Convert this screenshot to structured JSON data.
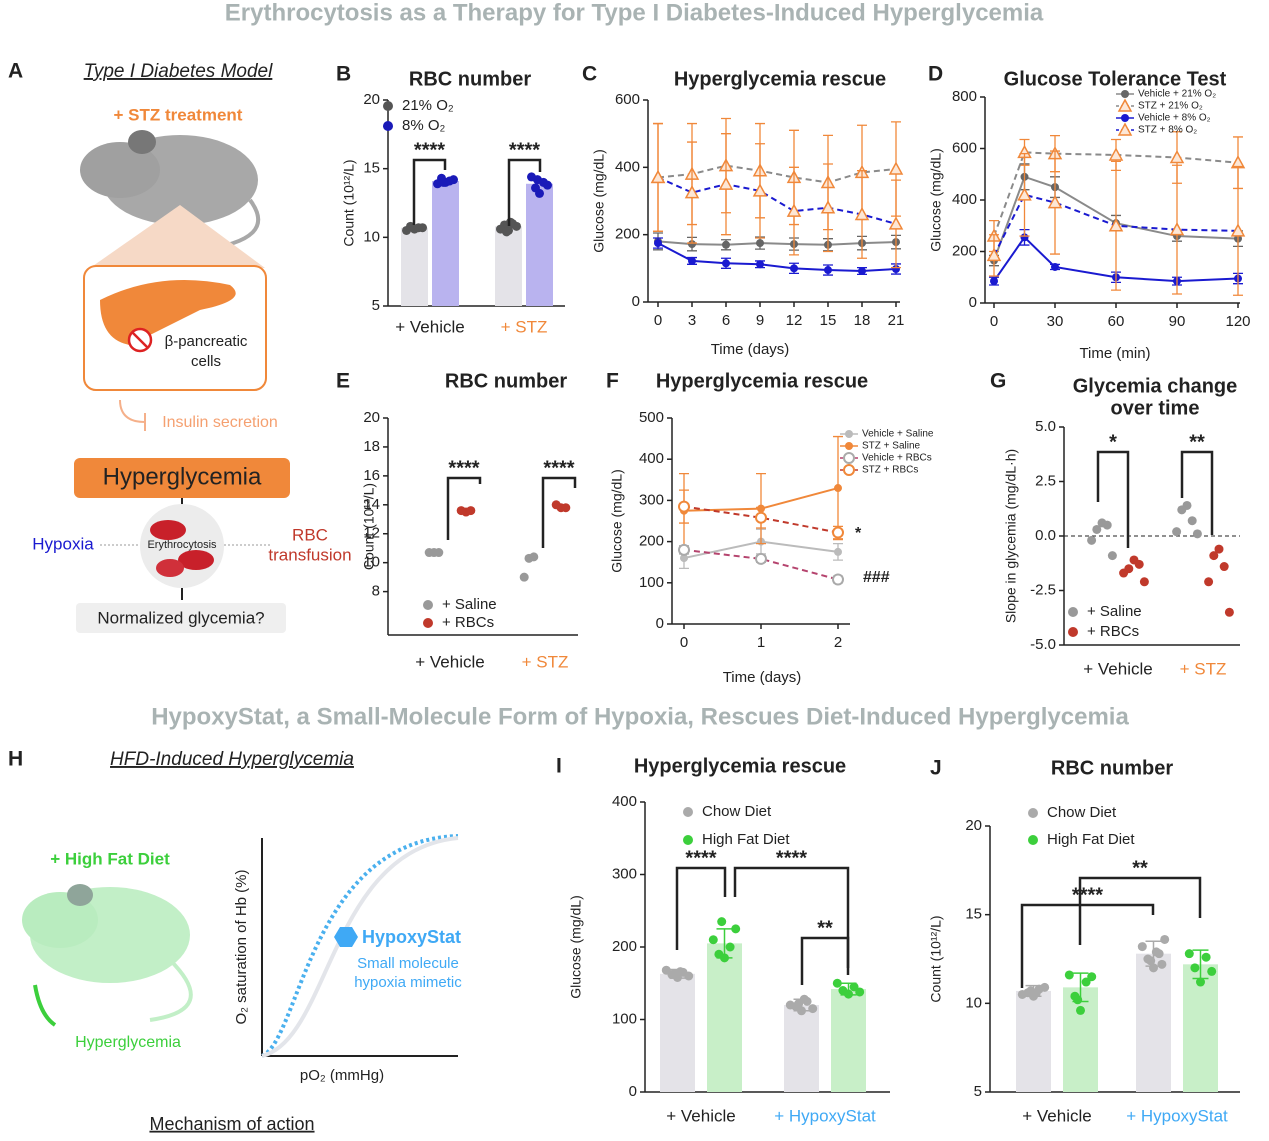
{
  "title": "Erythrocytosis as a Therapy for Type I Diabetes-Induced Hyperglycemia",
  "subtitle": "HypoxyStat, a Small-Molecule Form of Hypoxia, Rescues Diet-Induced Hyperglycemia",
  "diagram_a": {
    "panel": "A",
    "title": "Type I Diabetes Model",
    "treatment": "+ STZ treatment",
    "cells_1": "β-pancreatic",
    "cells_2": "cells",
    "insulin": "Insulin secretion",
    "hyperglycemia": "Hyperglycemia",
    "hypoxia": "Hypoxia",
    "erythrocytosis": "Erythrocytosis",
    "transfusion_1": "RBC",
    "transfusion_2": "transfusion",
    "outcome": "Normalized glycemia?"
  },
  "diagram_h": {
    "panel": "H",
    "title": "HFD-Induced Hyperglycemia",
    "diet": "+ High Fat Diet",
    "hyperglycemia": "Hyperglycemia",
    "y_label": "O₂ saturation of Hb (%)",
    "x_label": "pO₂ (mmHg)",
    "drug": "HypoxyStat",
    "drug_desc_1": "Small molecule",
    "drug_desc_2": "hypoxia mimetic",
    "caption": "Mechanism of action"
  },
  "chart_data": [
    {
      "type": "bar",
      "panel": "B",
      "title": "RBC number",
      "y_label": "Count (10¹²/L)",
      "categories": [
        "+ Vehicle",
        "+ STZ"
      ],
      "category_colors": [
        "#222222",
        "#f0883a"
      ],
      "ylim": [
        5,
        20
      ],
      "yticks": [
        5,
        10,
        15,
        20
      ],
      "series": [
        {
          "name": "21% O₂",
          "color": "#555555",
          "bar_color": "#e4e3e8",
          "values": [
            10.7,
            10.8
          ],
          "points": [
            [
              10.6,
              10.8,
              10.7,
              10.5,
              10.7
            ],
            [
              10.5,
              10.9,
              11.0,
              10.6,
              10.8,
              10.4,
              11.1
            ]
          ]
        },
        {
          "name": "8% O₂",
          "color": "#1a1ab8",
          "bar_color": "#b9b3ef",
          "values": [
            14.1,
            13.9
          ],
          "points": [
            [
              14.0,
              14.3,
              14.1,
              13.9,
              14.2,
              14.0
            ],
            [
              13.2,
              13.6,
              14.0,
              14.4,
              13.8,
              14.2
            ]
          ]
        }
      ],
      "annotations": [
        "****",
        "****"
      ]
    },
    {
      "type": "line",
      "panel": "C",
      "title": "Hyperglycemia rescue",
      "x_label": "Time (days)",
      "y_label": "Glucose (mg/dL)",
      "x": [
        0,
        3,
        6,
        9,
        12,
        15,
        18,
        21
      ],
      "xlim": [
        0,
        21
      ],
      "xticks": [
        0,
        3,
        6,
        9,
        12,
        15,
        18,
        21
      ],
      "ylim": [
        0,
        600
      ],
      "yticks": [
        0,
        200,
        400,
        600
      ],
      "series": [
        {
          "color": "#8a8a8a",
          "marker": "circle",
          "marker_color": "#666666",
          "dashed": false,
          "values": [
            180,
            172,
            170,
            175,
            172,
            170,
            175,
            178
          ],
          "errors": [
            25,
            20,
            15,
            18,
            18,
            18,
            20,
            20
          ]
        },
        {
          "color": "#8a8a8a",
          "marker": "triangle",
          "marker_color": "#f0883a",
          "dashed": true,
          "values": [
            370,
            380,
            405,
            390,
            370,
            355,
            385,
            395
          ],
          "errors": [
            160,
            150,
            140,
            140,
            140,
            140,
            140,
            140
          ]
        },
        {
          "color": "#1a1ad0",
          "marker": "circle",
          "marker_color": "#1a1ad0",
          "dashed": false,
          "values": [
            175,
            122,
            115,
            112,
            100,
            95,
            92,
            98
          ],
          "errors": [
            15,
            10,
            15,
            10,
            15,
            15,
            10,
            15
          ]
        },
        {
          "color": "#1a1ad0",
          "marker": "triangle",
          "marker_color": "#f0883a",
          "dashed": true,
          "values": [
            370,
            325,
            350,
            330,
            270,
            280,
            260,
            232
          ],
          "errors": [
            160,
            150,
            150,
            140,
            130,
            130,
            130,
            130
          ]
        }
      ]
    },
    {
      "type": "line",
      "panel": "D",
      "title": "Glucose Tolerance Test",
      "x_label": "Time (min)",
      "y_label": "Glucose (mg/dL)",
      "x": [
        0,
        15,
        30,
        60,
        90,
        120
      ],
      "xlim": [
        0,
        120
      ],
      "xticks": [
        0,
        30,
        60,
        90,
        120
      ],
      "ylim": [
        0,
        800
      ],
      "yticks": [
        0,
        200,
        400,
        600,
        800
      ],
      "legend": "upper right",
      "series": [
        {
          "name": "Vehicle + 21% O₂",
          "color": "#8a8a8a",
          "marker": "circle",
          "marker_color": "#666666",
          "dashed": false,
          "values": [
            165,
            490,
            450,
            310,
            260,
            250
          ],
          "errors": [
            20,
            50,
            40,
            30,
            20,
            30
          ]
        },
        {
          "name": "STZ + 21% O₂",
          "color": "#8a8a8a",
          "marker": "triangle",
          "marker_color": "#f0883a",
          "dashed": true,
          "values": [
            260,
            585,
            580,
            575,
            565,
            545
          ],
          "errors": [
            60,
            50,
            70,
            60,
            100,
            100
          ]
        },
        {
          "name": "Vehicle + 8% O₂",
          "color": "#1a1ad0",
          "marker": "circle",
          "marker_color": "#1a1ad0",
          "dashed": false,
          "values": [
            85,
            255,
            140,
            100,
            85,
            95
          ],
          "errors": [
            15,
            30,
            10,
            20,
            15,
            20
          ]
        },
        {
          "name": "STZ + 8% O₂",
          "color": "#1a1ad0",
          "marker": "triangle",
          "marker_color": "#f0883a",
          "dashed": true,
          "values": [
            185,
            420,
            390,
            300,
            285,
            280
          ],
          "errors": [
            80,
            160,
            200,
            250,
            250,
            250
          ]
        }
      ]
    },
    {
      "type": "dot",
      "panel": "E",
      "title": "RBC number",
      "y_label": "Count (10¹²/L)",
      "categories": [
        "+ Vehicle",
        "+ STZ"
      ],
      "category_colors": [
        "#222222",
        "#f0883a"
      ],
      "ylim": [
        5,
        20
      ],
      "yticks": [
        8,
        10,
        12,
        14,
        16,
        18,
        20
      ],
      "series": [
        {
          "name": "+ Saline",
          "color": "#999999",
          "points": [
            [
              10.7,
              10.7,
              10.7
            ],
            [
              10.3,
              9.0,
              10.4
            ]
          ]
        },
        {
          "name": "+ RBCs",
          "color": "#c0392b",
          "points": [
            [
              13.5,
              13.6,
              13.6
            ],
            [
              13.8,
              14.0,
              13.8
            ]
          ]
        }
      ],
      "annotations": [
        "****",
        "****"
      ]
    },
    {
      "type": "line",
      "panel": "F",
      "title": "Hyperglycemia rescue",
      "x_label": "Time (days)",
      "y_label": "Glucose (mg/dL)",
      "x": [
        0,
        1,
        2
      ],
      "xlim": [
        0,
        2
      ],
      "xticks": [
        0,
        1,
        2
      ],
      "ylim": [
        0,
        500
      ],
      "yticks": [
        0,
        100,
        200,
        300,
        400,
        500
      ],
      "legend": "upper right",
      "series": [
        {
          "name": "Vehicle + Saline",
          "color": "#bbbbbb",
          "marker": "circle",
          "marker_color": "#bbbbbb",
          "dashed": false,
          "values": [
            160,
            200,
            175
          ],
          "errors": [
            25,
            30,
            20
          ]
        },
        {
          "name": "STZ + Saline",
          "color": "#f0883a",
          "marker": "circle",
          "marker_color": "#f0883a",
          "dashed": false,
          "values": [
            275,
            280,
            330
          ],
          "errors": [
            90,
            85,
            125
          ]
        },
        {
          "name": "Vehicle + RBCs",
          "color": "#b5446e",
          "marker": "open-circle",
          "marker_color": "#aaaaaa",
          "dashed": true,
          "values": [
            180,
            158,
            108
          ],
          "errors": [
            10,
            8,
            8
          ]
        },
        {
          "name": "STZ + RBCs",
          "color": "#c0392b",
          "marker": "open-circle",
          "marker_color": "#f0883a",
          "dashed": true,
          "values": [
            285,
            258,
            222
          ],
          "errors": [
            40,
            25,
            15
          ]
        }
      ],
      "annotations": [
        "*",
        "###"
      ]
    },
    {
      "type": "dot",
      "panel": "G",
      "title": [
        "Glycemia change",
        "over time"
      ],
      "y_label": "Slope in glycemia (mg/dL·h)",
      "categories": [
        "+ Vehicle",
        "+ STZ"
      ],
      "category_colors": [
        "#222222",
        "#f0883a"
      ],
      "ylim": [
        -5,
        5
      ],
      "yticks": [
        {
          "value": -5,
          "label": "-5.0"
        },
        {
          "value": -2.5,
          "label": "-2.5"
        },
        {
          "value": 0,
          "label": "0.0"
        },
        {
          "value": 2.5,
          "label": "2.5"
        },
        {
          "value": 5,
          "label": "5.0"
        }
      ],
      "zero_line": true,
      "series": [
        {
          "name": "+ Saline",
          "color": "#999999",
          "points": [
            [
              0.6,
              0.3,
              0.5,
              -0.2,
              -0.9
            ],
            [
              1.4,
              1.2,
              0.7,
              0.2,
              0.1
            ]
          ]
        },
        {
          "name": "+ RBCs",
          "color": "#c0392b",
          "points": [
            [
              -1.1,
              -1.5,
              -1.3,
              -1.7,
              -2.1
            ],
            [
              -0.6,
              -0.9,
              -1.4,
              -2.1,
              -3.5
            ]
          ]
        }
      ],
      "annotations": [
        "*",
        "**"
      ]
    },
    {
      "type": "bar",
      "panel": "I",
      "title": "Hyperglycemia rescue",
      "y_label": "Glucose (mg/dL)",
      "categories": [
        "+ Vehicle",
        "+ HypoxyStat"
      ],
      "category_colors": [
        "#222222",
        "#3fa9f5"
      ],
      "ylim": [
        0,
        400
      ],
      "yticks": [
        0,
        100,
        200,
        300,
        400
      ],
      "series": [
        {
          "name": "Chow Diet",
          "color": "#aaaaaa",
          "bar_color": "#e4e3e8",
          "values": [
            163,
            120
          ],
          "errors": [
            6,
            8
          ],
          "points": [
            [
              158,
              162,
              165,
              168,
              160,
              163,
              166
            ],
            [
              112,
              118,
              125,
              120,
              115,
              122,
              128
            ]
          ]
        },
        {
          "name": "High Fat Diet",
          "color": "#3ccf3c",
          "bar_color": "#c8efc8",
          "values": [
            205,
            142
          ],
          "errors": [
            20,
            8
          ],
          "points": [
            [
              185,
              190,
              200,
              210,
              225,
              235
            ],
            [
              135,
              140,
              145,
              150,
              138
            ]
          ]
        }
      ],
      "annotations": [
        "****",
        "****",
        "**"
      ]
    },
    {
      "type": "bar",
      "panel": "J",
      "title": "RBC number",
      "y_label": "Count (10¹²/L)",
      "categories": [
        "+ Vehicle",
        "+ HypoxyStat"
      ],
      "category_colors": [
        "#222222",
        "#3fa9f5"
      ],
      "ylim": [
        5,
        20
      ],
      "yticks": [
        5,
        10,
        15,
        20
      ],
      "series": [
        {
          "name": "Chow Diet",
          "color": "#aaaaaa",
          "bar_color": "#e4e3e8",
          "values": [
            10.7,
            12.8
          ],
          "errors": [
            0.3,
            0.7
          ],
          "points": [
            [
              10.4,
              10.6,
              10.8,
              10.5,
              10.9,
              10.7,
              10.6
            ],
            [
              12.0,
              12.5,
              12.8,
              13.2,
              13.6,
              12.4,
              12.9,
              12.2
            ]
          ]
        },
        {
          "name": "High Fat Diet",
          "color": "#3ccf3c",
          "bar_color": "#c8efc8",
          "values": [
            10.9,
            12.2
          ],
          "errors": [
            0.8,
            0.8
          ],
          "points": [
            [
              9.6,
              10.4,
              11.2,
              11.6,
              11.5,
              10.2
            ],
            [
              11.2,
              12.0,
              12.6,
              12.8,
              11.8
            ]
          ]
        }
      ],
      "annotations": [
        "****",
        "**"
      ]
    }
  ]
}
